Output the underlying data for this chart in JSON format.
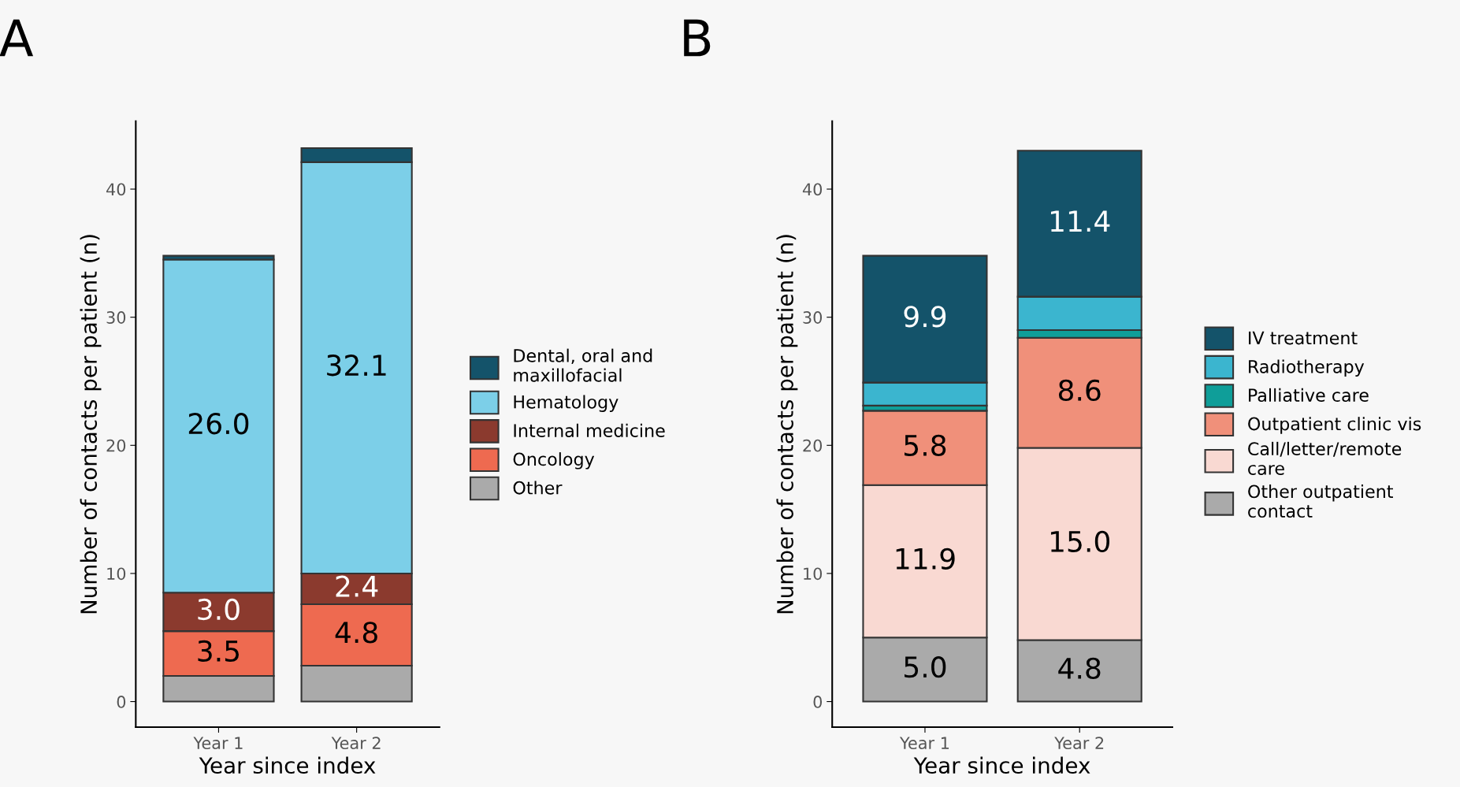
{
  "chart_data": [
    {
      "type": "bar",
      "title": "A",
      "xlabel": "Year since index",
      "ylabel": "Number of contacts per patient (n)",
      "categories": [
        "Year 1",
        "Year 2"
      ],
      "stacked": true,
      "ylim": [
        -2,
        45.3
      ],
      "yticks": [
        0,
        10,
        20,
        30,
        40
      ],
      "grid": false,
      "legend": "right",
      "series": [
        {
          "name": "Other",
          "color": "#aaaaaa",
          "values": [
            2.0,
            2.8
          ],
          "value_labels": [
            null,
            null
          ]
        },
        {
          "name": "Oncology",
          "color": "#ee6a50",
          "values": [
            3.5,
            4.8
          ],
          "value_labels": [
            "3.5",
            "4.8"
          ]
        },
        {
          "name": "Internal medicine",
          "color": "#8b3a2e",
          "values": [
            3.0,
            2.4
          ],
          "value_labels": [
            "3.0",
            "2.4"
          ]
        },
        {
          "name": "Hematology",
          "color": "#7ccfe8",
          "values": [
            26.0,
            32.1
          ],
          "value_labels": [
            "26.0",
            "32.1"
          ]
        },
        {
          "name": "Dental, oral and\nmaxillofacial",
          "color": "#14536a",
          "values": [
            0.3,
            1.1
          ],
          "value_labels": [
            null,
            null
          ]
        }
      ]
    },
    {
      "type": "bar",
      "title": "B",
      "xlabel": "Year since index",
      "ylabel": "Number of contacts per patient (n)",
      "categories": [
        "Year 1",
        "Year 2"
      ],
      "stacked": true,
      "ylim": [
        -2,
        45.3
      ],
      "yticks": [
        0,
        10,
        20,
        30,
        40
      ],
      "grid": false,
      "legend": "right",
      "series": [
        {
          "name": "Other outpatient\ncontact",
          "color": "#aaaaaa",
          "values": [
            5.0,
            4.8
          ],
          "value_labels": [
            "5.0",
            "4.8"
          ]
        },
        {
          "name": "Call/letter/remote\ncare",
          "color": "#f9d9d2",
          "values": [
            11.9,
            15.0
          ],
          "value_labels": [
            "11.9",
            "15.0"
          ]
        },
        {
          "name": "Outpatient clinic vis",
          "color": "#f0907a",
          "values": [
            5.8,
            8.6
          ],
          "value_labels": [
            "5.8",
            "8.6"
          ]
        },
        {
          "name": "Palliative care",
          "color": "#0f9e99",
          "values": [
            0.4,
            0.6
          ],
          "value_labels": [
            null,
            null
          ]
        },
        {
          "name": "Radiotherapy",
          "color": "#3bb5cf",
          "values": [
            1.8,
            2.6
          ],
          "value_labels": [
            null,
            null
          ]
        },
        {
          "name": "IV treatment",
          "color": "#14536a",
          "values": [
            9.9,
            11.4
          ],
          "value_labels": [
            "9.9",
            "11.4"
          ]
        }
      ]
    }
  ]
}
